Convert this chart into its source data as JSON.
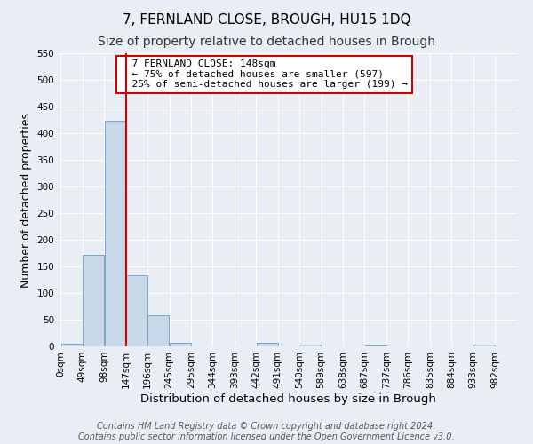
{
  "title": "7, FERNLAND CLOSE, BROUGH, HU15 1DQ",
  "subtitle": "Size of property relative to detached houses in Brough",
  "xlabel": "Distribution of detached houses by size in Brough",
  "ylabel": "Number of detached properties",
  "bin_edges": [
    0,
    49,
    98,
    147,
    196,
    245,
    294,
    343,
    392,
    441,
    490,
    539,
    588,
    637,
    686,
    735,
    784,
    833,
    882,
    931,
    980
  ],
  "bin_labels": [
    "0sqm",
    "49sqm",
    "98sqm",
    "147sqm",
    "196sqm",
    "245sqm",
    "295sqm",
    "344sqm",
    "393sqm",
    "442sqm",
    "491sqm",
    "540sqm",
    "589sqm",
    "638sqm",
    "687sqm",
    "737sqm",
    "786sqm",
    "835sqm",
    "884sqm",
    "933sqm",
    "982sqm"
  ],
  "counts": [
    5,
    171,
    424,
    134,
    58,
    7,
    0,
    0,
    0,
    6,
    0,
    3,
    0,
    0,
    2,
    0,
    0,
    0,
    0,
    3
  ],
  "bar_color": "#c8d8e8",
  "bar_edge_color": "#6a9cbf",
  "vline_x": 147,
  "vline_color": "#cc0000",
  "ylim": [
    0,
    550
  ],
  "yticks": [
    0,
    50,
    100,
    150,
    200,
    250,
    300,
    350,
    400,
    450,
    500,
    550
  ],
  "annotation_title": "7 FERNLAND CLOSE: 148sqm",
  "annotation_line1": "← 75% of detached houses are smaller (597)",
  "annotation_line2": "25% of semi-detached houses are larger (199) →",
  "annotation_box_color": "#ffffff",
  "annotation_box_edge_color": "#cc0000",
  "footer_line1": "Contains HM Land Registry data © Crown copyright and database right 2024.",
  "footer_line2": "Contains public sector information licensed under the Open Government Licence v3.0.",
  "background_color": "#e8eef4",
  "grid_color": "#ffffff",
  "title_fontsize": 11,
  "subtitle_fontsize": 10,
  "xlabel_fontsize": 9.5,
  "ylabel_fontsize": 9,
  "tick_fontsize": 7.5,
  "footer_fontsize": 7,
  "annotation_fontsize": 8
}
